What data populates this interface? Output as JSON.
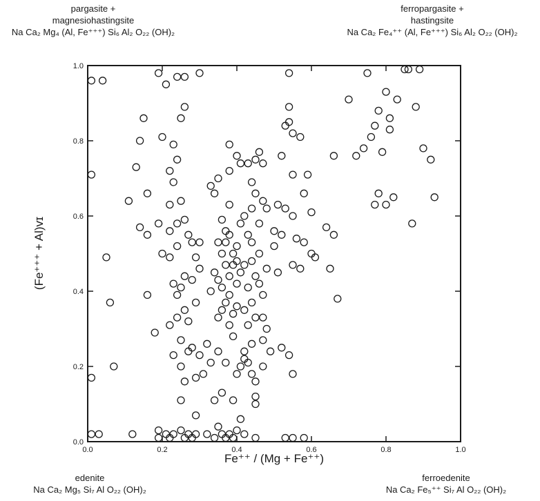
{
  "corners": {
    "top_left": {
      "name_line1": "pargasite +",
      "name_line2": "magnesiohastingsite",
      "formula": "Na Ca₂ Mg₄ (Al, Fe⁺⁺⁺) Si₆ Al₂ O₂₂ (OH)₂"
    },
    "top_right": {
      "name_line1": "ferropargasite +",
      "name_line2": "hastingsite",
      "formula": "Na Ca₂ Fe₄⁺⁺ (Al, Fe⁺⁺⁺) Si₆ Al₂ O₂₂ (OH)₂"
    },
    "bottom_left": {
      "name": "edenite",
      "formula": "Na Ca₂ Mg₅ Si₇ Al O₂₂ (OH)₂"
    },
    "bottom_right": {
      "name": "ferroedenite",
      "formula": "Na Ca₂ Fe₅⁺⁺ Si₇ Al O₂₂ (OH)₂"
    }
  },
  "chart_data": {
    "type": "scatter",
    "xlabel": "Fe⁺⁺ / (Mg + Fe⁺⁺)",
    "ylabel": "(Fe⁺⁺⁺ + Al)ᴠɪ",
    "xlim": [
      0.0,
      1.0
    ],
    "ylim": [
      0.0,
      1.0
    ],
    "xticks": [
      "0.0",
      "0.2",
      "0.4",
      "0.6",
      "0.8",
      "1.0"
    ],
    "yticks": [
      "0.0",
      "0.2",
      "0.4",
      "0.6",
      "0.8",
      "1.0"
    ],
    "marker": "open-circle",
    "grid": false,
    "series": [
      {
        "points": [
          [
            0.01,
            0.96
          ],
          [
            0.04,
            0.96
          ],
          [
            0.01,
            0.71
          ],
          [
            0.05,
            0.49
          ],
          [
            0.06,
            0.37
          ],
          [
            0.07,
            0.2
          ],
          [
            0.01,
            0.17
          ],
          [
            0.01,
            0.02
          ],
          [
            0.03,
            0.02
          ],
          [
            0.12,
            0.02
          ],
          [
            0.11,
            0.64
          ],
          [
            0.13,
            0.73
          ],
          [
            0.14,
            0.8
          ],
          [
            0.15,
            0.86
          ],
          [
            0.14,
            0.57
          ],
          [
            0.16,
            0.66
          ],
          [
            0.16,
            0.55
          ],
          [
            0.16,
            0.39
          ],
          [
            0.18,
            0.29
          ],
          [
            0.19,
            0.58
          ],
          [
            0.19,
            0.98
          ],
          [
            0.21,
            0.95
          ],
          [
            0.24,
            0.97
          ],
          [
            0.26,
            0.97
          ],
          [
            0.3,
            0.98
          ],
          [
            0.2,
            0.81
          ],
          [
            0.23,
            0.79
          ],
          [
            0.25,
            0.86
          ],
          [
            0.26,
            0.89
          ],
          [
            0.24,
            0.75
          ],
          [
            0.22,
            0.72
          ],
          [
            0.23,
            0.69
          ],
          [
            0.25,
            0.64
          ],
          [
            0.22,
            0.63
          ],
          [
            0.2,
            0.5
          ],
          [
            0.22,
            0.49
          ],
          [
            0.24,
            0.52
          ],
          [
            0.22,
            0.56
          ],
          [
            0.24,
            0.58
          ],
          [
            0.26,
            0.59
          ],
          [
            0.27,
            0.55
          ],
          [
            0.28,
            0.53
          ],
          [
            0.3,
            0.53
          ],
          [
            0.29,
            0.49
          ],
          [
            0.23,
            0.42
          ],
          [
            0.25,
            0.41
          ],
          [
            0.24,
            0.39
          ],
          [
            0.26,
            0.44
          ],
          [
            0.28,
            0.43
          ],
          [
            0.3,
            0.46
          ],
          [
            0.22,
            0.31
          ],
          [
            0.24,
            0.33
          ],
          [
            0.26,
            0.35
          ],
          [
            0.27,
            0.32
          ],
          [
            0.29,
            0.37
          ],
          [
            0.25,
            0.27
          ],
          [
            0.27,
            0.24
          ],
          [
            0.28,
            0.25
          ],
          [
            0.3,
            0.23
          ],
          [
            0.23,
            0.23
          ],
          [
            0.25,
            0.2
          ],
          [
            0.26,
            0.16
          ],
          [
            0.29,
            0.17
          ],
          [
            0.31,
            0.18
          ],
          [
            0.33,
            0.21
          ],
          [
            0.25,
            0.11
          ],
          [
            0.29,
            0.07
          ],
          [
            0.19,
            0.03
          ],
          [
            0.21,
            0.02
          ],
          [
            0.23,
            0.02
          ],
          [
            0.25,
            0.03
          ],
          [
            0.27,
            0.02
          ],
          [
            0.29,
            0.02
          ],
          [
            0.19,
            0.01
          ],
          [
            0.22,
            0.01
          ],
          [
            0.26,
            0.01
          ],
          [
            0.28,
            0.01
          ],
          [
            0.33,
            0.68
          ],
          [
            0.34,
            0.66
          ],
          [
            0.35,
            0.7
          ],
          [
            0.36,
            0.59
          ],
          [
            0.38,
            0.63
          ],
          [
            0.37,
            0.56
          ],
          [
            0.35,
            0.53
          ],
          [
            0.36,
            0.5
          ],
          [
            0.37,
            0.47
          ],
          [
            0.34,
            0.45
          ],
          [
            0.35,
            0.43
          ],
          [
            0.36,
            0.41
          ],
          [
            0.38,
            0.44
          ],
          [
            0.39,
            0.47
          ],
          [
            0.37,
            0.53
          ],
          [
            0.38,
            0.55
          ],
          [
            0.4,
            0.52
          ],
          [
            0.41,
            0.58
          ],
          [
            0.39,
            0.5
          ],
          [
            0.4,
            0.48
          ],
          [
            0.41,
            0.45
          ],
          [
            0.4,
            0.42
          ],
          [
            0.38,
            0.39
          ],
          [
            0.37,
            0.37
          ],
          [
            0.36,
            0.35
          ],
          [
            0.35,
            0.33
          ],
          [
            0.38,
            0.31
          ],
          [
            0.39,
            0.34
          ],
          [
            0.4,
            0.36
          ],
          [
            0.33,
            0.4
          ],
          [
            0.32,
            0.26
          ],
          [
            0.35,
            0.24
          ],
          [
            0.37,
            0.21
          ],
          [
            0.39,
            0.28
          ],
          [
            0.4,
            0.18
          ],
          [
            0.41,
            0.2
          ],
          [
            0.42,
            0.22
          ],
          [
            0.34,
            0.11
          ],
          [
            0.36,
            0.13
          ],
          [
            0.39,
            0.11
          ],
          [
            0.41,
            0.06
          ],
          [
            0.38,
            0.72
          ],
          [
            0.38,
            0.79
          ],
          [
            0.4,
            0.76
          ],
          [
            0.41,
            0.74
          ],
          [
            0.43,
            0.74
          ],
          [
            0.32,
            0.02
          ],
          [
            0.34,
            0.01
          ],
          [
            0.36,
            0.02
          ],
          [
            0.38,
            0.02
          ],
          [
            0.4,
            0.03
          ],
          [
            0.42,
            0.02
          ],
          [
            0.35,
            0.04
          ],
          [
            0.39,
            0.01
          ],
          [
            0.45,
            0.01
          ],
          [
            0.37,
            0.01
          ],
          [
            0.42,
            0.6
          ],
          [
            0.44,
            0.62
          ],
          [
            0.43,
            0.55
          ],
          [
            0.44,
            0.53
          ],
          [
            0.42,
            0.47
          ],
          [
            0.44,
            0.48
          ],
          [
            0.45,
            0.44
          ],
          [
            0.43,
            0.41
          ],
          [
            0.44,
            0.37
          ],
          [
            0.42,
            0.35
          ],
          [
            0.43,
            0.31
          ],
          [
            0.45,
            0.33
          ],
          [
            0.44,
            0.26
          ],
          [
            0.42,
            0.24
          ],
          [
            0.43,
            0.21
          ],
          [
            0.44,
            0.18
          ],
          [
            0.45,
            0.16
          ],
          [
            0.45,
            0.1
          ],
          [
            0.45,
            0.12
          ],
          [
            0.44,
            0.69
          ],
          [
            0.45,
            0.66
          ],
          [
            0.45,
            0.75
          ],
          [
            0.46,
            0.77
          ],
          [
            0.47,
            0.74
          ],
          [
            0.47,
            0.64
          ],
          [
            0.46,
            0.58
          ],
          [
            0.48,
            0.62
          ],
          [
            0.46,
            0.5
          ],
          [
            0.48,
            0.46
          ],
          [
            0.46,
            0.42
          ],
          [
            0.47,
            0.39
          ],
          [
            0.47,
            0.33
          ],
          [
            0.48,
            0.3
          ],
          [
            0.47,
            0.27
          ],
          [
            0.49,
            0.24
          ],
          [
            0.47,
            0.2
          ],
          [
            0.5,
            0.56
          ],
          [
            0.5,
            0.52
          ],
          [
            0.51,
            0.63
          ],
          [
            0.52,
            0.55
          ],
          [
            0.53,
            0.84
          ],
          [
            0.54,
            0.89
          ],
          [
            0.55,
            0.82
          ],
          [
            0.54,
            0.85
          ],
          [
            0.52,
            0.76
          ],
          [
            0.55,
            0.71
          ],
          [
            0.57,
            0.81
          ],
          [
            0.53,
            0.62
          ],
          [
            0.55,
            0.6
          ],
          [
            0.56,
            0.54
          ],
          [
            0.55,
            0.47
          ],
          [
            0.57,
            0.46
          ],
          [
            0.58,
            0.53
          ],
          [
            0.58,
            0.66
          ],
          [
            0.59,
            0.71
          ],
          [
            0.6,
            0.61
          ],
          [
            0.6,
            0.5
          ],
          [
            0.61,
            0.49
          ],
          [
            0.51,
            0.45
          ],
          [
            0.52,
            0.25
          ],
          [
            0.54,
            0.23
          ],
          [
            0.55,
            0.18
          ],
          [
            0.54,
            0.98
          ],
          [
            0.53,
            0.01
          ],
          [
            0.55,
            0.01
          ],
          [
            0.58,
            0.01
          ],
          [
            0.64,
            0.57
          ],
          [
            0.65,
            0.46
          ],
          [
            0.66,
            0.55
          ],
          [
            0.66,
            0.76
          ],
          [
            0.67,
            0.38
          ],
          [
            0.7,
            0.91
          ],
          [
            0.72,
            0.76
          ],
          [
            0.75,
            0.98
          ],
          [
            0.74,
            0.78
          ],
          [
            0.76,
            0.81
          ],
          [
            0.77,
            0.84
          ],
          [
            0.78,
            0.88
          ],
          [
            0.78,
            0.66
          ],
          [
            0.77,
            0.63
          ],
          [
            0.79,
            0.77
          ],
          [
            0.8,
            0.93
          ],
          [
            0.8,
            0.63
          ],
          [
            0.81,
            0.83
          ],
          [
            0.81,
            0.86
          ],
          [
            0.82,
            0.65
          ],
          [
            0.83,
            0.91
          ],
          [
            0.85,
            0.99
          ],
          [
            0.86,
            0.99
          ],
          [
            0.87,
            0.58
          ],
          [
            0.88,
            0.89
          ],
          [
            0.89,
            0.99
          ],
          [
            0.9,
            0.78
          ],
          [
            0.92,
            0.75
          ],
          [
            0.93,
            0.65
          ]
        ]
      }
    ]
  }
}
